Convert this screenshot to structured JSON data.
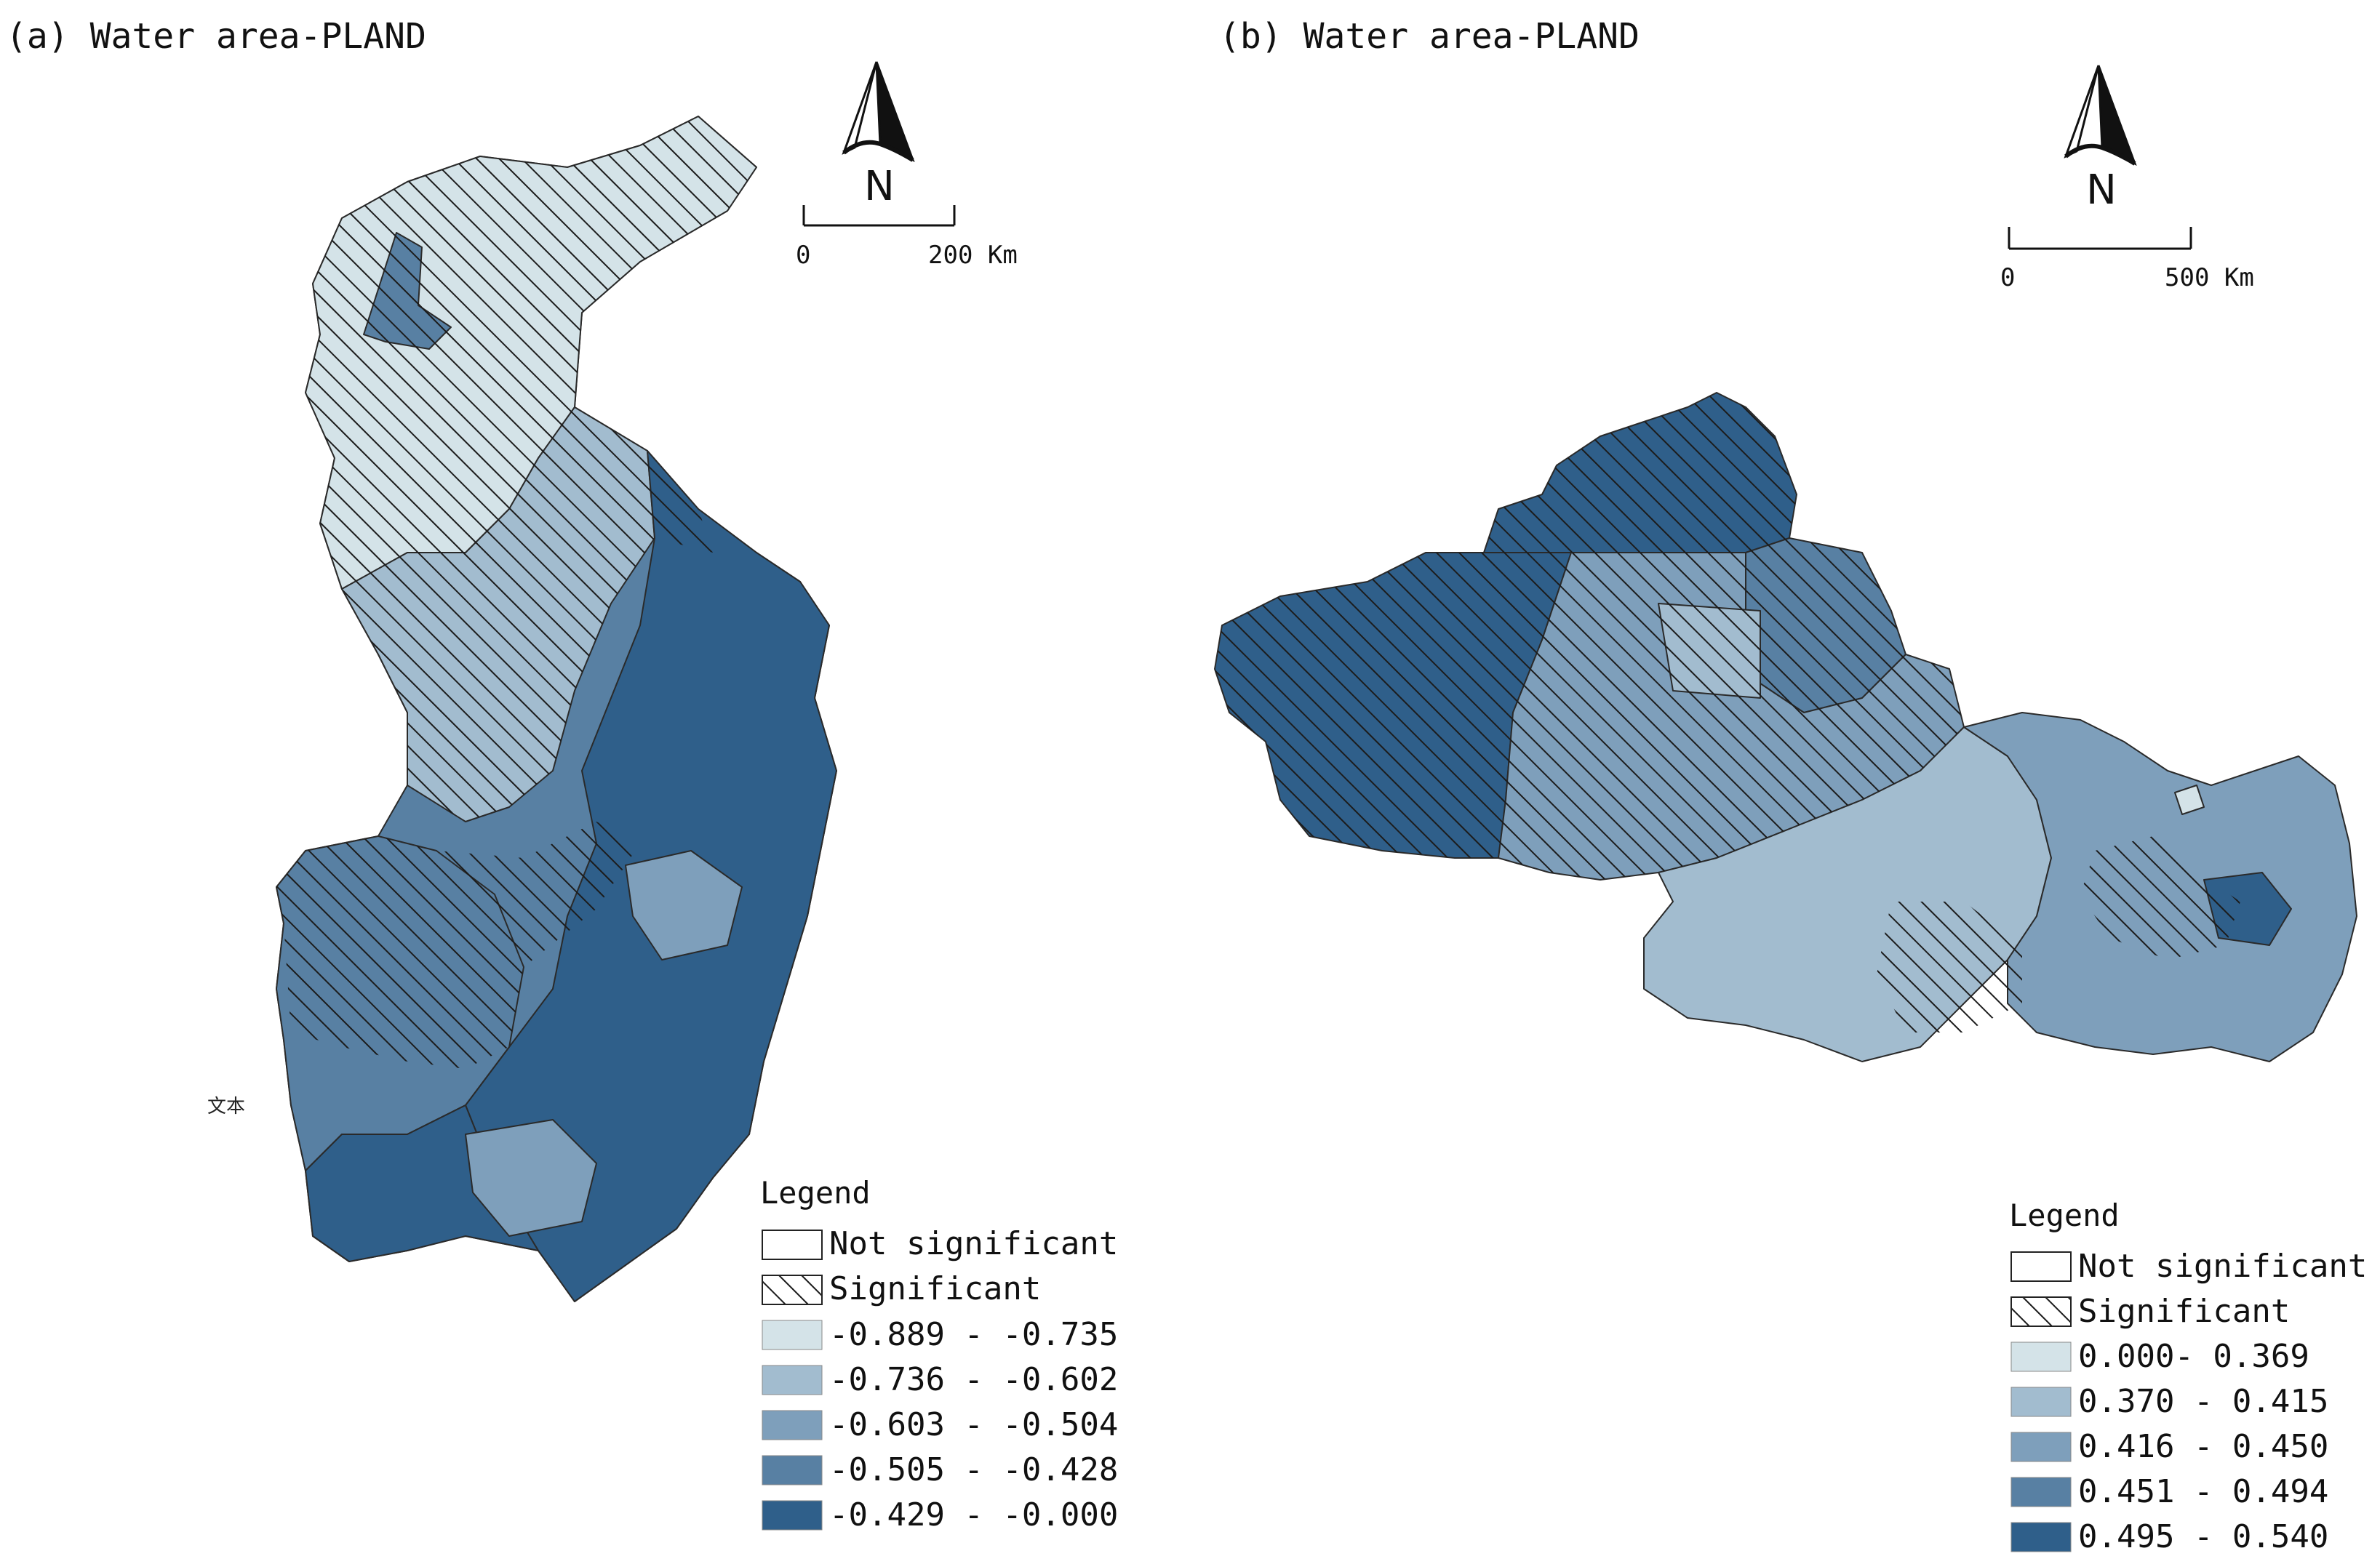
{
  "panels": [
    {
      "id": "a",
      "title": "(a) Water area-PLAND",
      "scale_bar": {
        "start_label": "0",
        "end_label": "200 Km"
      },
      "north_label": "N",
      "legend": {
        "title": "Legend",
        "items": [
          {
            "label": "Not significant",
            "style": "outline"
          },
          {
            "label": "Significant",
            "style": "hatch"
          },
          {
            "label": "-0.889 - -0.735",
            "color": "#d4e3e8"
          },
          {
            "label": "-0.736 - -0.602",
            "color": "#a2bccf"
          },
          {
            "label": "-0.603 - -0.504",
            "color": "#7e9fbb"
          },
          {
            "label": "-0.505 - -0.428",
            "color": "#5880a3"
          },
          {
            "label": "-0.429 - -0.000",
            "color": "#2f5f8a"
          }
        ]
      },
      "stray_text": "文本"
    },
    {
      "id": "b",
      "title": "(b) Water area-PLAND",
      "scale_bar": {
        "start_label": "0",
        "end_label": "500 Km"
      },
      "north_label": "N",
      "legend": {
        "title": "Legend",
        "items": [
          {
            "label": "Not significant",
            "style": "outline"
          },
          {
            "label": "Significant",
            "style": "hatch"
          },
          {
            "label": "0.000- 0.369",
            "color": "#d4e3e8"
          },
          {
            "label": "0.370 - 0.415",
            "color": "#a2bccf"
          },
          {
            "label": "0.416 - 0.450",
            "color": "#7e9fbb"
          },
          {
            "label": "0.451 - 0.494",
            "color": "#5880a3"
          },
          {
            "label": "0.495 - 0.540",
            "color": "#2f5f8a"
          }
        ]
      }
    }
  ]
}
